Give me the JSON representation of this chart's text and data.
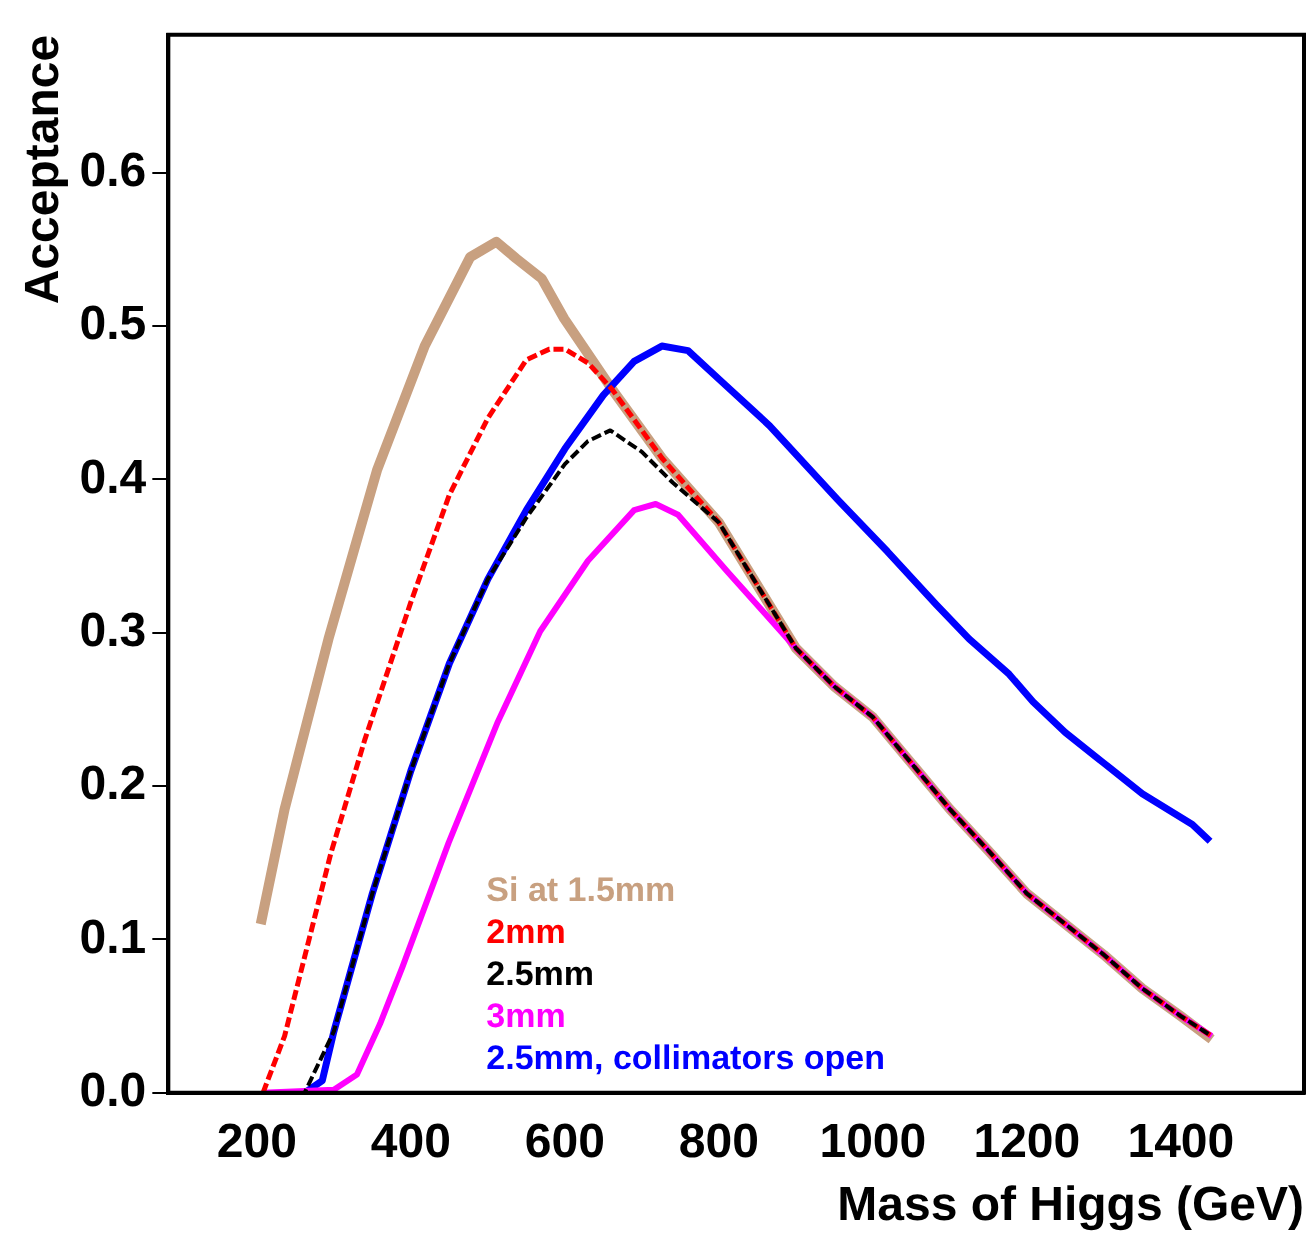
{
  "chart_data": {
    "type": "line",
    "xlabel": "Mass of Higgs (GeV)",
    "ylabel": "Acceptance",
    "xlim": [
      85,
      1560
    ],
    "ylim": [
      0,
      0.69
    ],
    "xticks": [
      200,
      400,
      600,
      800,
      1000,
      1200,
      1400
    ],
    "yticks": [
      {
        "value": 0,
        "label": "0.0"
      },
      0.1,
      0.2,
      0.3,
      0.4,
      0.5,
      0.6
    ],
    "grid": false,
    "legend": "bottom",
    "marker": "none",
    "series": [
      {
        "name": "Si at 1.5mm",
        "color": "#c8a080",
        "line_style": "solid",
        "x": [
          205,
          236,
          293,
          356,
          418,
          477,
          511,
          537,
          570,
          599,
          661,
          726,
          800,
          900,
          950,
          1000,
          1050,
          1100,
          1150,
          1200,
          1250,
          1300,
          1350,
          1400,
          1440
        ],
        "values": [
          0.11,
          0.185,
          0.296,
          0.406,
          0.487,
          0.545,
          0.555,
          0.544,
          0.531,
          0.505,
          0.459,
          0.414,
          0.372,
          0.29,
          0.265,
          0.245,
          0.215,
          0.185,
          0.158,
          0.13,
          0.11,
          0.09,
          0.068,
          0.05,
          0.035
        ]
      },
      {
        "name": "2mm",
        "color": "#ff0000",
        "line_style": "dashed",
        "x": [
          208,
          236,
          296,
          340,
          400,
          450,
          500,
          550,
          580,
          600,
          630,
          661,
          726,
          800,
          900,
          950,
          1000,
          1050,
          1100,
          1150,
          1200,
          1250,
          1300,
          1350,
          1400,
          1440
        ],
        "values": [
          0,
          0.037,
          0.156,
          0.23,
          0.32,
          0.39,
          0.44,
          0.478,
          0.485,
          0.485,
          0.476,
          0.459,
          0.414,
          0.372,
          0.29,
          0.265,
          0.245,
          0.215,
          0.185,
          0.158,
          0.13,
          0.11,
          0.09,
          0.068,
          0.05,
          0.037
        ]
      },
      {
        "name": "2.5mm",
        "color": "#000000",
        "line_style": "dashed",
        "x": [
          262,
          300,
          350,
          400,
          450,
          500,
          550,
          600,
          630,
          659,
          700,
          740,
          800,
          900,
          950,
          1000,
          1050,
          1100,
          1150,
          1200,
          1250,
          1300,
          1350,
          1400,
          1440
        ],
        "values": [
          0,
          0.04,
          0.13,
          0.21,
          0.28,
          0.335,
          0.375,
          0.41,
          0.425,
          0.432,
          0.418,
          0.398,
          0.372,
          0.29,
          0.265,
          0.245,
          0.215,
          0.185,
          0.158,
          0.13,
          0.11,
          0.09,
          0.068,
          0.05,
          0.037
        ]
      },
      {
        "name": "3mm",
        "color": "#ff00ff",
        "line_style": "solid",
        "x": [
          208,
          300,
          330,
          360,
          389,
          449,
          513,
          568,
          630,
          690,
          718,
          747,
          811,
          900,
          950,
          1000,
          1050,
          1100,
          1150,
          1200,
          1250,
          1300,
          1350,
          1400,
          1440
        ],
        "values": [
          0,
          0.002,
          0.012,
          0.045,
          0.082,
          0.163,
          0.242,
          0.301,
          0.347,
          0.38,
          0.384,
          0.377,
          0.34,
          0.29,
          0.265,
          0.245,
          0.215,
          0.185,
          0.158,
          0.13,
          0.11,
          0.09,
          0.068,
          0.05,
          0.037
        ]
      },
      {
        "name": "2.5mm, collimators open",
        "color": "#0000ff",
        "line_style": "solid",
        "x": [
          262,
          285,
          300,
          350,
          400,
          450,
          500,
          550,
          600,
          650,
          690,
          726,
          760,
          801,
          866,
          954,
          1019,
          1083,
          1125,
          1177,
          1208,
          1250,
          1300,
          1350,
          1415,
          1438
        ],
        "values": [
          0,
          0.008,
          0.04,
          0.13,
          0.21,
          0.28,
          0.335,
          0.38,
          0.42,
          0.455,
          0.477,
          0.487,
          0.484,
          0.465,
          0.435,
          0.387,
          0.353,
          0.318,
          0.296,
          0.273,
          0.255,
          0.235,
          0.215,
          0.195,
          0.175,
          0.164
        ]
      }
    ]
  }
}
